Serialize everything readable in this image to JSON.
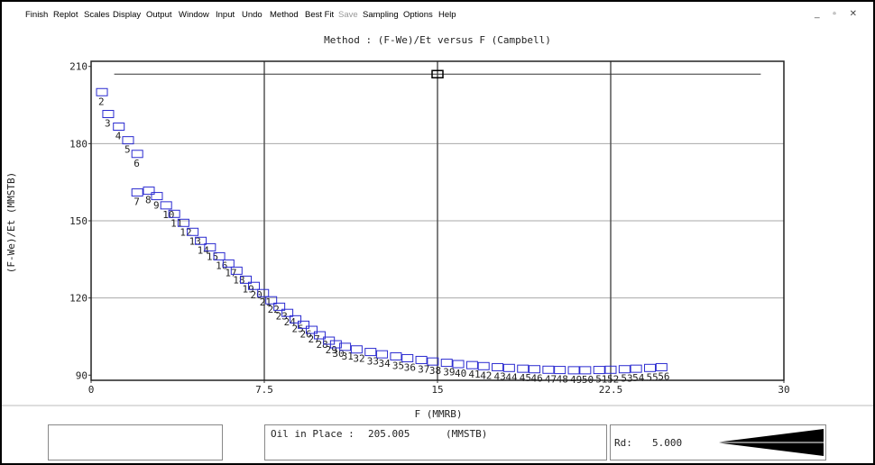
{
  "menu": [
    {
      "label": "Finish",
      "enabled": true
    },
    {
      "label": "Replot",
      "enabled": true
    },
    {
      "label": "Scales",
      "enabled": true
    },
    {
      "label": "Display",
      "enabled": true
    },
    {
      "label": "Output",
      "enabled": true
    },
    {
      "label": "Window",
      "enabled": true
    },
    {
      "label": "Input",
      "enabled": true
    },
    {
      "label": "Undo",
      "enabled": true
    },
    {
      "label": "Method",
      "enabled": true
    },
    {
      "label": "Best Fit",
      "enabled": true
    },
    {
      "label": "Save",
      "enabled": false
    },
    {
      "label": "Sampling",
      "enabled": true
    },
    {
      "label": "Options",
      "enabled": true
    },
    {
      "label": "Help",
      "enabled": true
    }
  ],
  "chart_data": {
    "type": "scatter",
    "title": "Method : (F-We)/Et versus F (Campbell)",
    "x_label": "F (MMRB)",
    "y_label": "(F-We)/Et (MMSTB)",
    "labels": [
      "2",
      "3",
      "4",
      "5",
      "6",
      "7",
      "8",
      "9",
      "10",
      "11",
      "12",
      "13",
      "14",
      "15",
      "16",
      "17",
      "18",
      "19",
      "20",
      "21",
      "22",
      "23",
      "24",
      "25",
      "26",
      "27",
      "28",
      "29",
      "30",
      "31",
      "32",
      "33",
      "34",
      "35",
      "36",
      "37",
      "38",
      "39",
      "40",
      "41",
      "42",
      "43",
      "44",
      "45",
      "46",
      "47",
      "48",
      "49",
      "50",
      "51",
      "52",
      "53",
      "54",
      "55",
      "56"
    ],
    "x": [
      0.47,
      0.74,
      1.2,
      1.6,
      2.0,
      2.0,
      2.5,
      2.85,
      3.25,
      3.6,
      4.0,
      4.4,
      4.75,
      5.15,
      5.55,
      5.95,
      6.3,
      6.7,
      7.05,
      7.45,
      7.8,
      8.15,
      8.5,
      8.85,
      9.2,
      9.55,
      9.9,
      10.3,
      10.6,
      11.0,
      11.5,
      12.1,
      12.6,
      13.2,
      13.7,
      14.3,
      14.8,
      15.4,
      15.9,
      16.5,
      17.0,
      17.6,
      18.1,
      18.7,
      19.2,
      19.8,
      20.3,
      20.9,
      21.4,
      22.0,
      22.5,
      23.1,
      23.6,
      24.2,
      24.7
    ],
    "values": [
      200,
      191.5,
      186.6,
      181.3,
      176,
      161,
      161.7,
      159.6,
      156,
      152.7,
      149.2,
      145.7,
      142.2,
      139.7,
      136.2,
      133.4,
      130.6,
      127.1,
      124.7,
      121.9,
      119.1,
      116.6,
      114.2,
      111.7,
      109.6,
      107.6,
      105.5,
      103.4,
      102,
      101,
      100,
      99,
      98.1,
      97.3,
      96.6,
      95.9,
      95.3,
      94.8,
      94.3,
      93.9,
      93.5,
      93.1,
      92.8,
      92.5,
      92.3,
      92.1,
      92.0,
      91.9,
      91.9,
      92.0,
      92.1,
      92.3,
      92.5,
      92.8,
      93.1
    ],
    "color": "#2a2ad0",
    "fit_line_y": 207,
    "fit_line_x": [
      1,
      29
    ],
    "fit_marker_x": 15,
    "xlim": [
      0,
      30
    ],
    "ylim": [
      88,
      212
    ],
    "xticks": [
      0,
      7.5,
      15,
      22.5,
      30
    ],
    "yticks": [
      90,
      120,
      150,
      180,
      210
    ],
    "grid": true
  },
  "status": {
    "oil_in_place_label": "Oil in Place :",
    "oil_in_place_value": "205.005",
    "oil_in_place_unit": "(MMSTB)",
    "rd_label": "Rd:",
    "rd_value": "5.000"
  }
}
